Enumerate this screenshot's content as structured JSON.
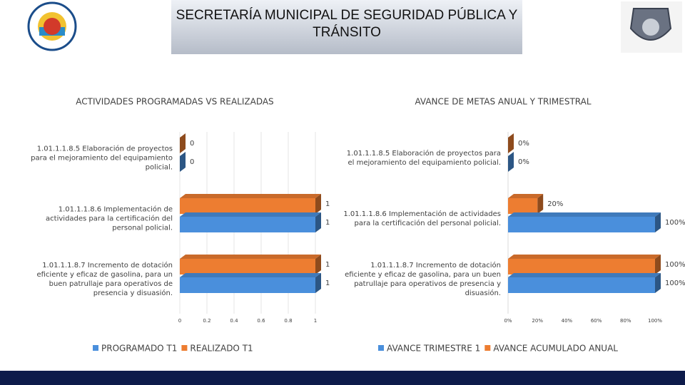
{
  "header": {
    "title": "SECRETARÍA MUNICIPAL DE SEGURIDAD PÚBLICA Y TRÁNSITO"
  },
  "chart_data": [
    {
      "type": "bar",
      "orientation": "horizontal",
      "title": "ACTIVIDADES PROGRAMADAS VS REALIZADAS",
      "categories": [
        "1.01.1.1.8.5 Elaboración de proyectos para el mejoramiento del equipamiento policial.",
        "1.01.1.1.8.6 Implementación de actividades para la certificación del personal policial.",
        "1.01.1.1.8.7 Incremento de dotación eficiente y eficaz de gasolina, para un buen patrullaje para operativos de presencia y disuasión."
      ],
      "series": [
        {
          "name": "PROGRAMADO T1",
          "color": "#4a8fdc",
          "values": [
            0,
            1,
            1
          ]
        },
        {
          "name": "REALIZADO T1",
          "color": "#ed7d31",
          "values": [
            0,
            1,
            1
          ]
        }
      ],
      "xlim": [
        0,
        1
      ],
      "xticks": [
        0,
        0.2,
        0.4,
        0.6,
        0.8,
        1
      ],
      "grid": true
    },
    {
      "type": "bar",
      "orientation": "horizontal",
      "title": "AVANCE DE METAS ANUAL Y TRIMESTRAL",
      "categories": [
        "1.01.1.1.8.5 Elaboración de proyectos para el mejoramiento del equipamiento policial.",
        "1.01.1.1.8.6 Implementación de actividades para la certificación del personal policial.",
        "1.01.1.1.8.7 Incremento de dotación eficiente y eficaz de gasolina, para un buen patrullaje para operativos de presencia y disuasión."
      ],
      "series": [
        {
          "name": "AVANCE TRIMESTRE 1",
          "color": "#4a8fdc",
          "values": [
            0,
            100,
            100
          ],
          "value_labels": [
            "0%",
            "100%",
            "100%"
          ]
        },
        {
          "name": "AVANCE ACUMULADO ANUAL",
          "color": "#ed7d31",
          "values": [
            0,
            20,
            100
          ],
          "value_labels": [
            "0%",
            "20%",
            "100%"
          ]
        }
      ],
      "xlim": [
        0,
        100
      ],
      "xticks": [
        {
          "value": 0,
          "label": "0%"
        },
        {
          "value": 20,
          "label": "20%"
        },
        {
          "value": 40,
          "label": "40%"
        },
        {
          "value": 60,
          "label": "60%"
        },
        {
          "value": 80,
          "label": "80%"
        },
        {
          "value": 100,
          "label": "100%"
        }
      ],
      "grid": false
    }
  ]
}
